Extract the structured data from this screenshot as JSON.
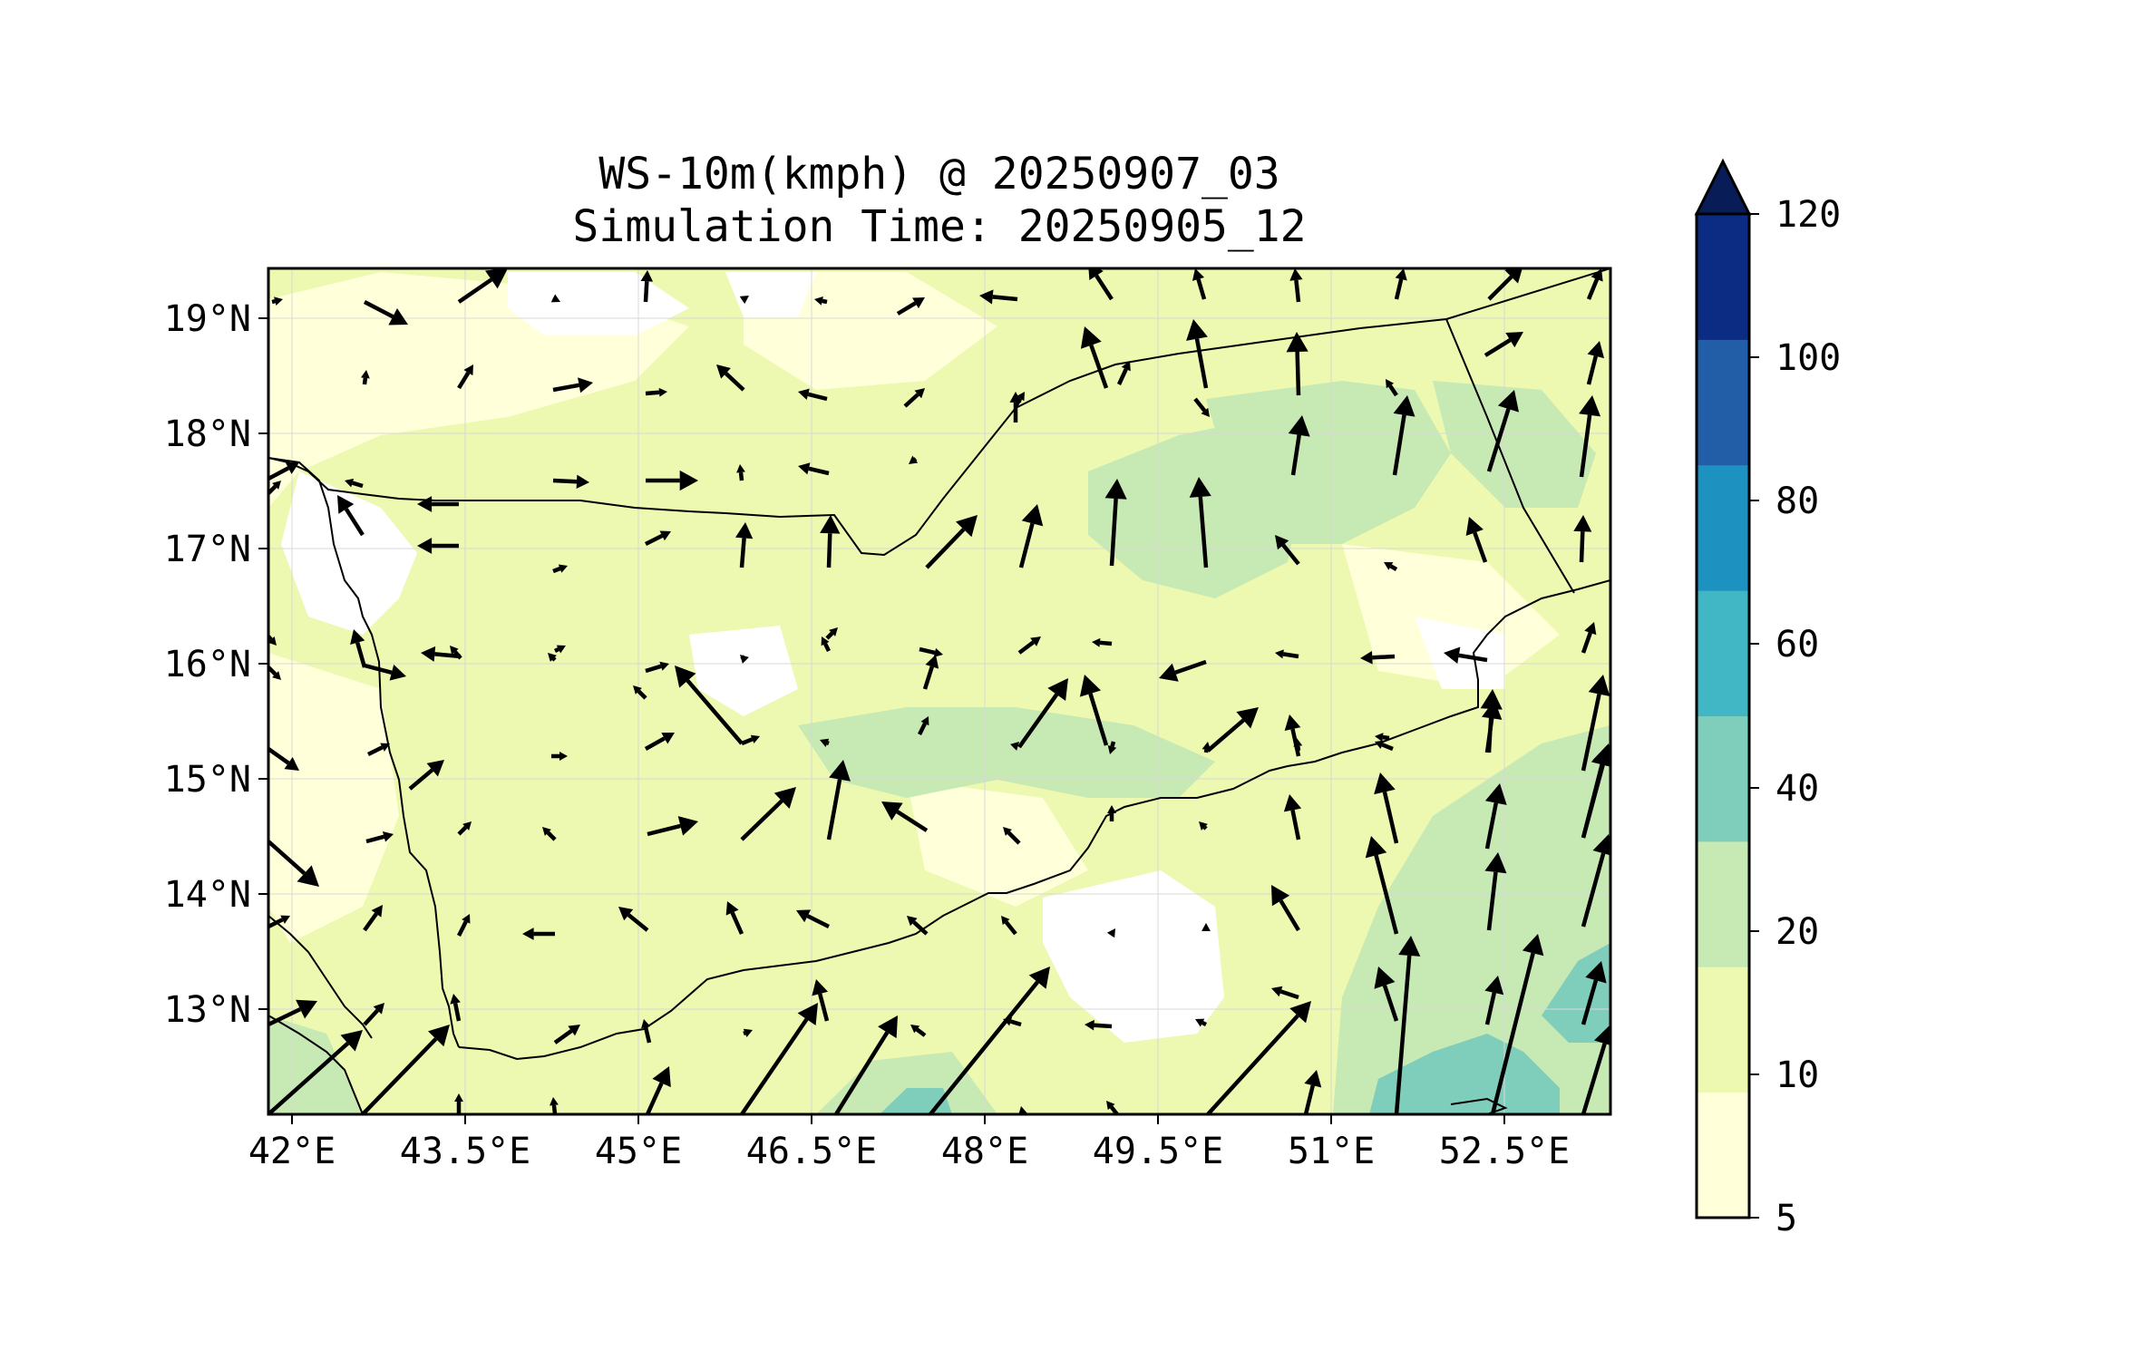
{
  "title": "WS-10m(kmph) @ 20250907_03",
  "subtitle": "Simulation Time: 20250905_12",
  "axes": {
    "lon_ticks": [
      "42°E",
      "43.5°E",
      "45°E",
      "46.5°E",
      "48°E",
      "49.5°E",
      "51°E",
      "52.5°E"
    ],
    "lat_ticks": [
      "19°N",
      "18°N",
      "17°N",
      "16°N",
      "15°N",
      "14°N",
      "13°N"
    ]
  },
  "colorbar": {
    "levels": [
      "5",
      "10",
      "20",
      "40",
      "60",
      "80",
      "100",
      "120"
    ],
    "colors": [
      "#ffffd9",
      "#edf8b1",
      "#c7e9b4",
      "#7fcdbb",
      "#41b6c4",
      "#1d91c0",
      "#225ea8",
      "#0c2c84"
    ],
    "extend": "max",
    "extend_color": "#081d58"
  },
  "map": {
    "lon_range": [
      41.7,
      53.8
    ],
    "lat_range": [
      12.1,
      19.45
    ],
    "region_colors": {
      "calm_white": "#ffffff",
      "low": "#ffffd9",
      "light": "#edf8b1",
      "mid": "#c7e9b4",
      "strong": "#7fcdbb"
    },
    "gridlines": true
  }
}
